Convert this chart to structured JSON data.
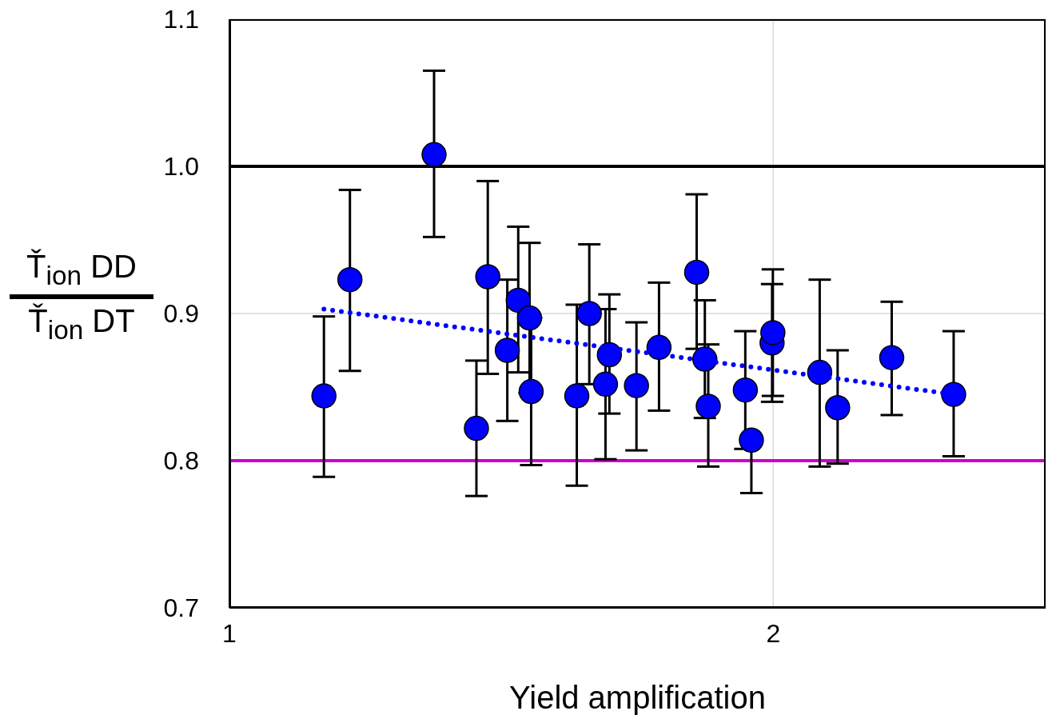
{
  "chart_data": {
    "type": "scatter",
    "xlabel": "Yield amplification",
    "ylabel": "Ť$_{ion}$ DD\nŤ$_{ion}$ DT",
    "log": "x",
    "xlim": [
      1,
      2.83
    ],
    "xticks": [
      1,
      2
    ],
    "ylim": [
      0.7,
      1.1
    ],
    "yticks": [
      0.7,
      0.8,
      0.9,
      {
        "value": 1.0,
        "label": "1.0"
      },
      1.1
    ],
    "grid": true,
    "ref_lines": [
      {
        "axis": "y",
        "value": 1.0,
        "color": "#000000"
      },
      {
        "axis": "y",
        "value": 0.8,
        "color": "#cc00cc"
      }
    ],
    "series": [
      {
        "color": "#0000ff",
        "marker": "circle",
        "x": [
          1.128,
          1.166,
          1.298,
          1.37,
          1.39,
          1.425,
          1.445,
          1.466,
          1.469,
          1.557,
          1.582,
          1.615,
          1.623,
          1.68,
          1.729,
          1.814,
          1.833,
          1.841,
          1.93,
          1.945,
          1.997,
          1.999,
          2.122,
          2.171,
          2.326,
          2.517
        ],
        "values": [
          0.844,
          0.923,
          1.008,
          0.822,
          0.925,
          0.875,
          0.909,
          0.897,
          0.847,
          0.844,
          0.9,
          0.852,
          0.872,
          0.851,
          0.877,
          0.928,
          0.869,
          0.837,
          0.848,
          0.814,
          0.88,
          0.887,
          0.86,
          0.836,
          0.87,
          0.845
        ],
        "errors": [
          [
            0.789,
            0.898
          ],
          [
            0.861,
            0.984
          ],
          [
            0.952,
            1.065
          ],
          [
            0.776,
            0.868
          ],
          [
            0.859,
            0.99
          ],
          [
            0.827,
            0.923
          ],
          [
            0.86,
            0.959
          ],
          0.051,
          0.05,
          [
            0.783,
            0.906
          ],
          [
            0.852,
            0.947
          ],
          [
            0.801,
            0.903
          ],
          [
            0.832,
            0.913
          ],
          [
            0.807,
            0.894
          ],
          [
            0.834,
            0.921
          ],
          [
            0.876,
            0.981
          ],
          [
            0.829,
            0.909
          ],
          [
            0.796,
            0.879
          ],
          [
            0.808,
            0.888
          ],
          [
            0.778,
            0.814
          ],
          [
            0.84,
            0.92
          ],
          [
            0.844,
            0.93
          ],
          [
            0.796,
            0.923
          ],
          [
            0.798,
            0.875
          ],
          [
            0.831,
            0.908
          ],
          [
            0.803,
            0.888
          ]
        ]
      },
      {
        "type": "line",
        "color": "#0000ff",
        "line_style": "dotted",
        "x": [
          1.128,
          2.517
        ],
        "values": [
          0.903,
          0.845
        ]
      }
    ]
  }
}
